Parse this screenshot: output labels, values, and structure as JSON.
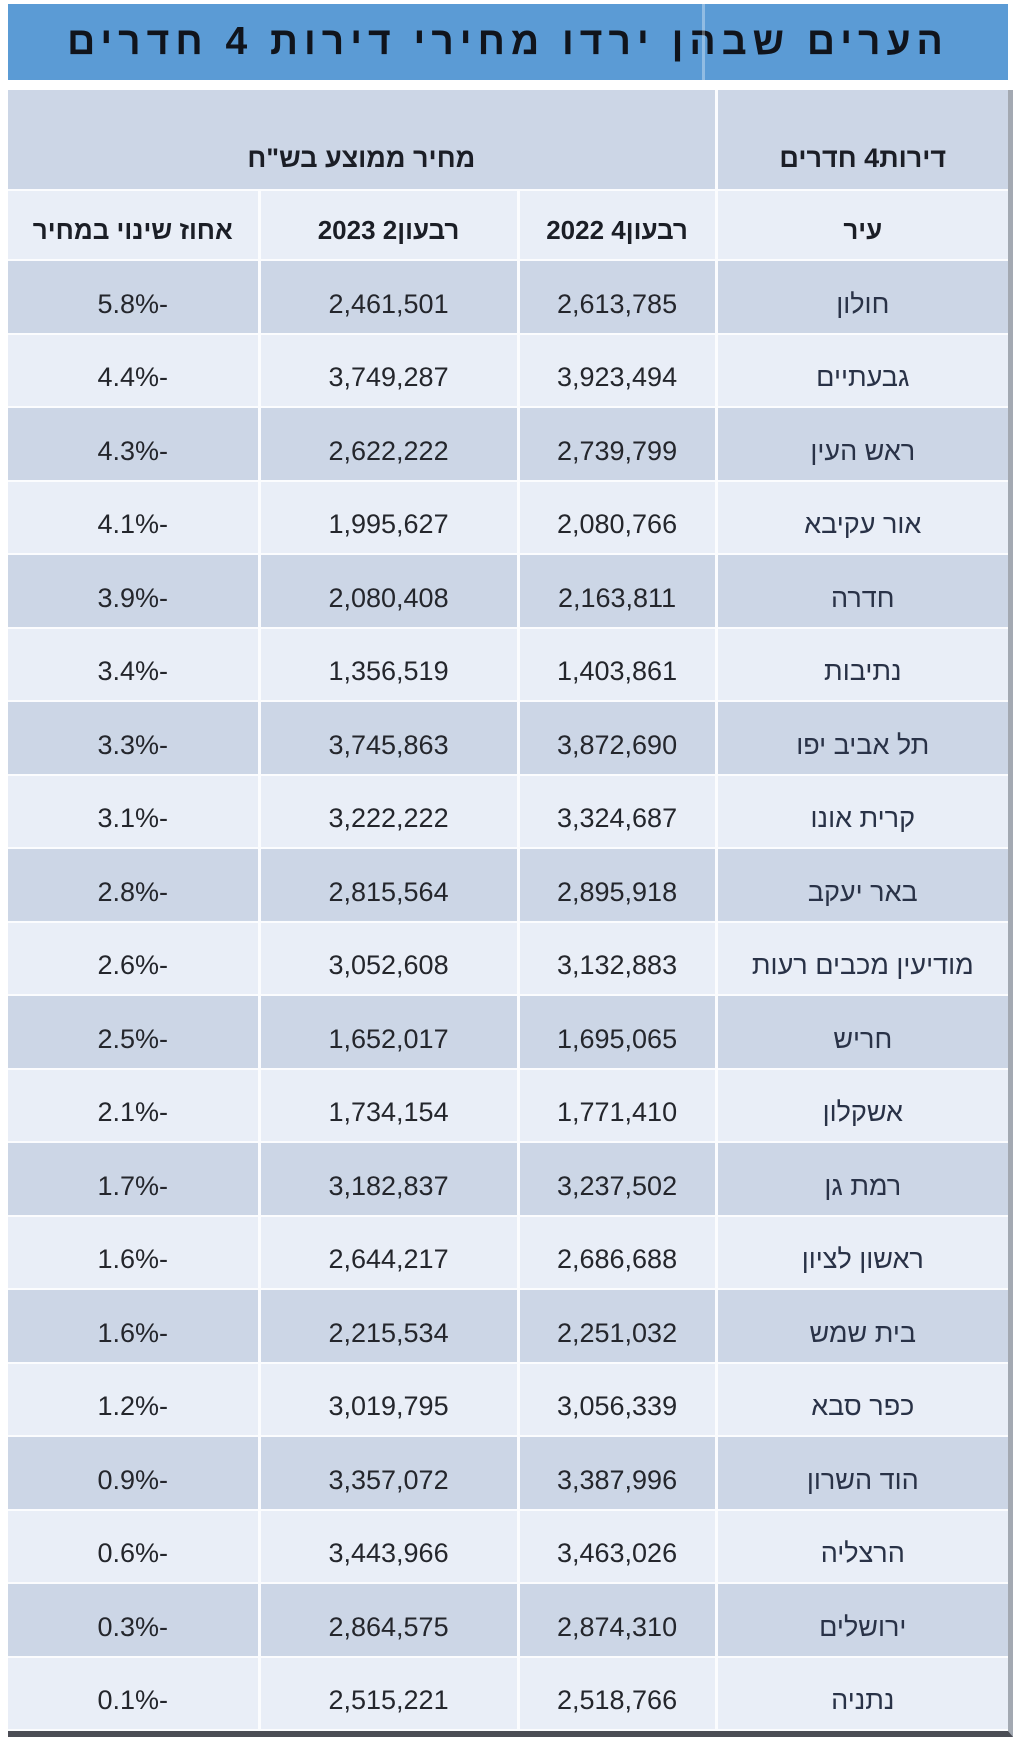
{
  "title": "הערים שבהן ירדו מחירי דירות 4 חדרים",
  "table": {
    "group_headers": {
      "apartments": "דירות4 חדרים",
      "avg_price": "מחיר ממוצע בש\"ח"
    },
    "columns": {
      "city": "עיר",
      "q4_2022": "רבעון4 2022",
      "q2_2023": "רבעון2 2023",
      "pct_change": "אחוז שינוי במחיר"
    },
    "rows": [
      {
        "city": "חולון",
        "q4_2022": "2,613,785",
        "q2_2023": "2,461,501",
        "pct_change": "-5.8%"
      },
      {
        "city": "גבעתיים",
        "q4_2022": "3,923,494",
        "q2_2023": "3,749,287",
        "pct_change": "-4.4%"
      },
      {
        "city": "ראש העין",
        "q4_2022": "2,739,799",
        "q2_2023": "2,622,222",
        "pct_change": "-4.3%"
      },
      {
        "city": "אור עקיבא",
        "q4_2022": "2,080,766",
        "q2_2023": "1,995,627",
        "pct_change": "-4.1%"
      },
      {
        "city": "חדרה",
        "q4_2022": "2,163,811",
        "q2_2023": "2,080,408",
        "pct_change": "-3.9%"
      },
      {
        "city": "נתיבות",
        "q4_2022": "1,403,861",
        "q2_2023": "1,356,519",
        "pct_change": "-3.4%"
      },
      {
        "city": "תל אביב יפו",
        "q4_2022": "3,872,690",
        "q2_2023": "3,745,863",
        "pct_change": "-3.3%"
      },
      {
        "city": "קרית אונו",
        "q4_2022": "3,324,687",
        "q2_2023": "3,222,222",
        "pct_change": "-3.1%"
      },
      {
        "city": "באר יעקב",
        "q4_2022": "2,895,918",
        "q2_2023": "2,815,564",
        "pct_change": "-2.8%"
      },
      {
        "city": "מודיעין מכבים רעות",
        "q4_2022": "3,132,883",
        "q2_2023": "3,052,608",
        "pct_change": "-2.6%"
      },
      {
        "city": "חריש",
        "q4_2022": "1,695,065",
        "q2_2023": "1,652,017",
        "pct_change": "-2.5%"
      },
      {
        "city": "אשקלון",
        "q4_2022": "1,771,410",
        "q2_2023": "1,734,154",
        "pct_change": "-2.1%"
      },
      {
        "city": "רמת גן",
        "q4_2022": "3,237,502",
        "q2_2023": "3,182,837",
        "pct_change": "-1.7%"
      },
      {
        "city": "ראשון לציון",
        "q4_2022": "2,686,688",
        "q2_2023": "2,644,217",
        "pct_change": "-1.6%"
      },
      {
        "city": "בית שמש",
        "q4_2022": "2,251,032",
        "q2_2023": "2,215,534",
        "pct_change": "-1.6%"
      },
      {
        "city": "כפר סבא",
        "q4_2022": "3,056,339",
        "q2_2023": "3,019,795",
        "pct_change": "-1.2%"
      },
      {
        "city": "הוד השרון",
        "q4_2022": "3,387,996",
        "q2_2023": "3,357,072",
        "pct_change": "-0.9%"
      },
      {
        "city": "הרצליה",
        "q4_2022": "3,463,026",
        "q2_2023": "3,443,966",
        "pct_change": "-0.6%"
      },
      {
        "city": "ירושלים",
        "q4_2022": "2,874,310",
        "q2_2023": "2,864,575",
        "pct_change": "-0.3%"
      },
      {
        "city": "נתניה",
        "q4_2022": "2,518,766",
        "q2_2023": "2,515,221",
        "pct_change": "-0.1%"
      }
    ]
  },
  "chart_data": {
    "type": "table",
    "title": "הערים שבהן ירדו מחירי דירות 4 חדרים",
    "columns": [
      "עיר",
      "רבעון4 2022",
      "רבעון2 2023",
      "אחוז שינוי במחיר"
    ],
    "rows": [
      [
        "חולון",
        2613785,
        2461501,
        -5.8
      ],
      [
        "גבעתיים",
        3923494,
        3749287,
        -4.4
      ],
      [
        "ראש העין",
        2739799,
        2622222,
        -4.3
      ],
      [
        "אור עקיבא",
        2080766,
        1995627,
        -4.1
      ],
      [
        "חדרה",
        2163811,
        2080408,
        -3.9
      ],
      [
        "נתיבות",
        1403861,
        1356519,
        -3.4
      ],
      [
        "תל אביב יפו",
        3872690,
        3745863,
        -3.3
      ],
      [
        "קרית אונו",
        3324687,
        3222222,
        -3.1
      ],
      [
        "באר יעקב",
        2895918,
        2815564,
        -2.8
      ],
      [
        "מודיעין מכבים רעות",
        3132883,
        3052608,
        -2.6
      ],
      [
        "חריש",
        1695065,
        1652017,
        -2.5
      ],
      [
        "אשקלון",
        1771410,
        1734154,
        -2.1
      ],
      [
        "רמת גן",
        3237502,
        3182837,
        -1.7
      ],
      [
        "ראשון לציון",
        2686688,
        2644217,
        -1.6
      ],
      [
        "בית שמש",
        2251032,
        2215534,
        -1.6
      ],
      [
        "כפר סבא",
        3056339,
        3019795,
        -1.2
      ],
      [
        "הוד השרון",
        3387996,
        3357072,
        -0.9
      ],
      [
        "הרצליה",
        3463026,
        3443966,
        -0.6
      ],
      [
        "ירושלים",
        2874310,
        2864575,
        -0.3
      ],
      [
        "נתניה",
        2518766,
        2515221,
        -0.1
      ]
    ]
  },
  "colors": {
    "title_bg": "#5b9bd5",
    "title_text": "#10141c",
    "row_dark": "#ccd6e6",
    "row_light": "#e9eef7",
    "separator": "#fbfcfe",
    "right_edge": "#a3a9b2",
    "bottom_edge": "#4b4d55"
  }
}
